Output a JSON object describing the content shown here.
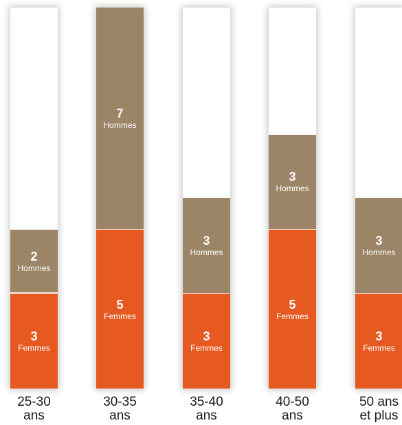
{
  "chart_data": {
    "type": "bar",
    "stacked": true,
    "categories": [
      "25-30\nans",
      "30-35\nans",
      "35-40\nans",
      "40-50\nans",
      "50 ans\net plus"
    ],
    "series": [
      {
        "name": "Femmes",
        "values": [
          3,
          5,
          3,
          5,
          3
        ],
        "color": "#e65a22",
        "label": "Femmes"
      },
      {
        "name": "Hommes",
        "values": [
          2,
          7,
          3,
          3,
          3
        ],
        "color": "#9c8466",
        "label": "Hommes"
      }
    ],
    "ylim": [
      0,
      12
    ],
    "grid": false,
    "title": "",
    "xlabel": "",
    "ylabel": ""
  }
}
